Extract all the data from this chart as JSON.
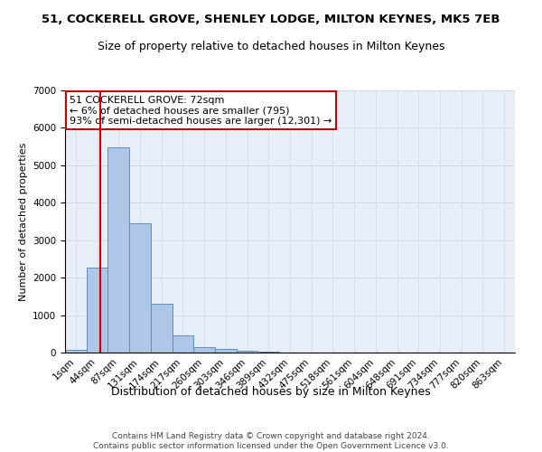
{
  "title": "51, COCKERELL GROVE, SHENLEY LODGE, MILTON KEYNES, MK5 7EB",
  "subtitle": "Size of property relative to detached houses in Milton Keynes",
  "xlabel": "Distribution of detached houses by size in Milton Keynes",
  "ylabel": "Number of detached properties",
  "categories": [
    "1sqm",
    "44sqm",
    "87sqm",
    "131sqm",
    "174sqm",
    "217sqm",
    "260sqm",
    "303sqm",
    "346sqm",
    "389sqm",
    "432sqm",
    "475sqm",
    "518sqm",
    "561sqm",
    "604sqm",
    "648sqm",
    "691sqm",
    "734sqm",
    "777sqm",
    "820sqm",
    "863sqm"
  ],
  "bar_values": [
    75,
    2270,
    5470,
    3450,
    1310,
    460,
    155,
    90,
    60,
    30,
    0,
    0,
    0,
    0,
    0,
    0,
    0,
    0,
    0,
    0,
    0
  ],
  "bar_color": "#aec6e8",
  "bar_edge_color": "#5a8fc0",
  "annotation_title": "51 COCKERELL GROVE: 72sqm",
  "annotation_line1": "← 6% of detached houses are smaller (795)",
  "annotation_line2": "93% of semi-detached houses are larger (12,301) →",
  "annotation_box_color": "#ffffff",
  "annotation_box_edge_color": "#cc0000",
  "vline_color": "#cc0000",
  "ylim": [
    0,
    7000
  ],
  "yticks": [
    0,
    1000,
    2000,
    3000,
    4000,
    5000,
    6000,
    7000
  ],
  "grid_color": "#d0d8e8",
  "background_color": "#e8eef8",
  "footer_line1": "Contains HM Land Registry data © Crown copyright and database right 2024.",
  "footer_line2": "Contains public sector information licensed under the Open Government Licence v3.0.",
  "title_fontsize": 9.5,
  "subtitle_fontsize": 9,
  "xlabel_fontsize": 9,
  "ylabel_fontsize": 8,
  "tick_fontsize": 7.5,
  "annotation_fontsize": 8,
  "footer_fontsize": 6.5
}
